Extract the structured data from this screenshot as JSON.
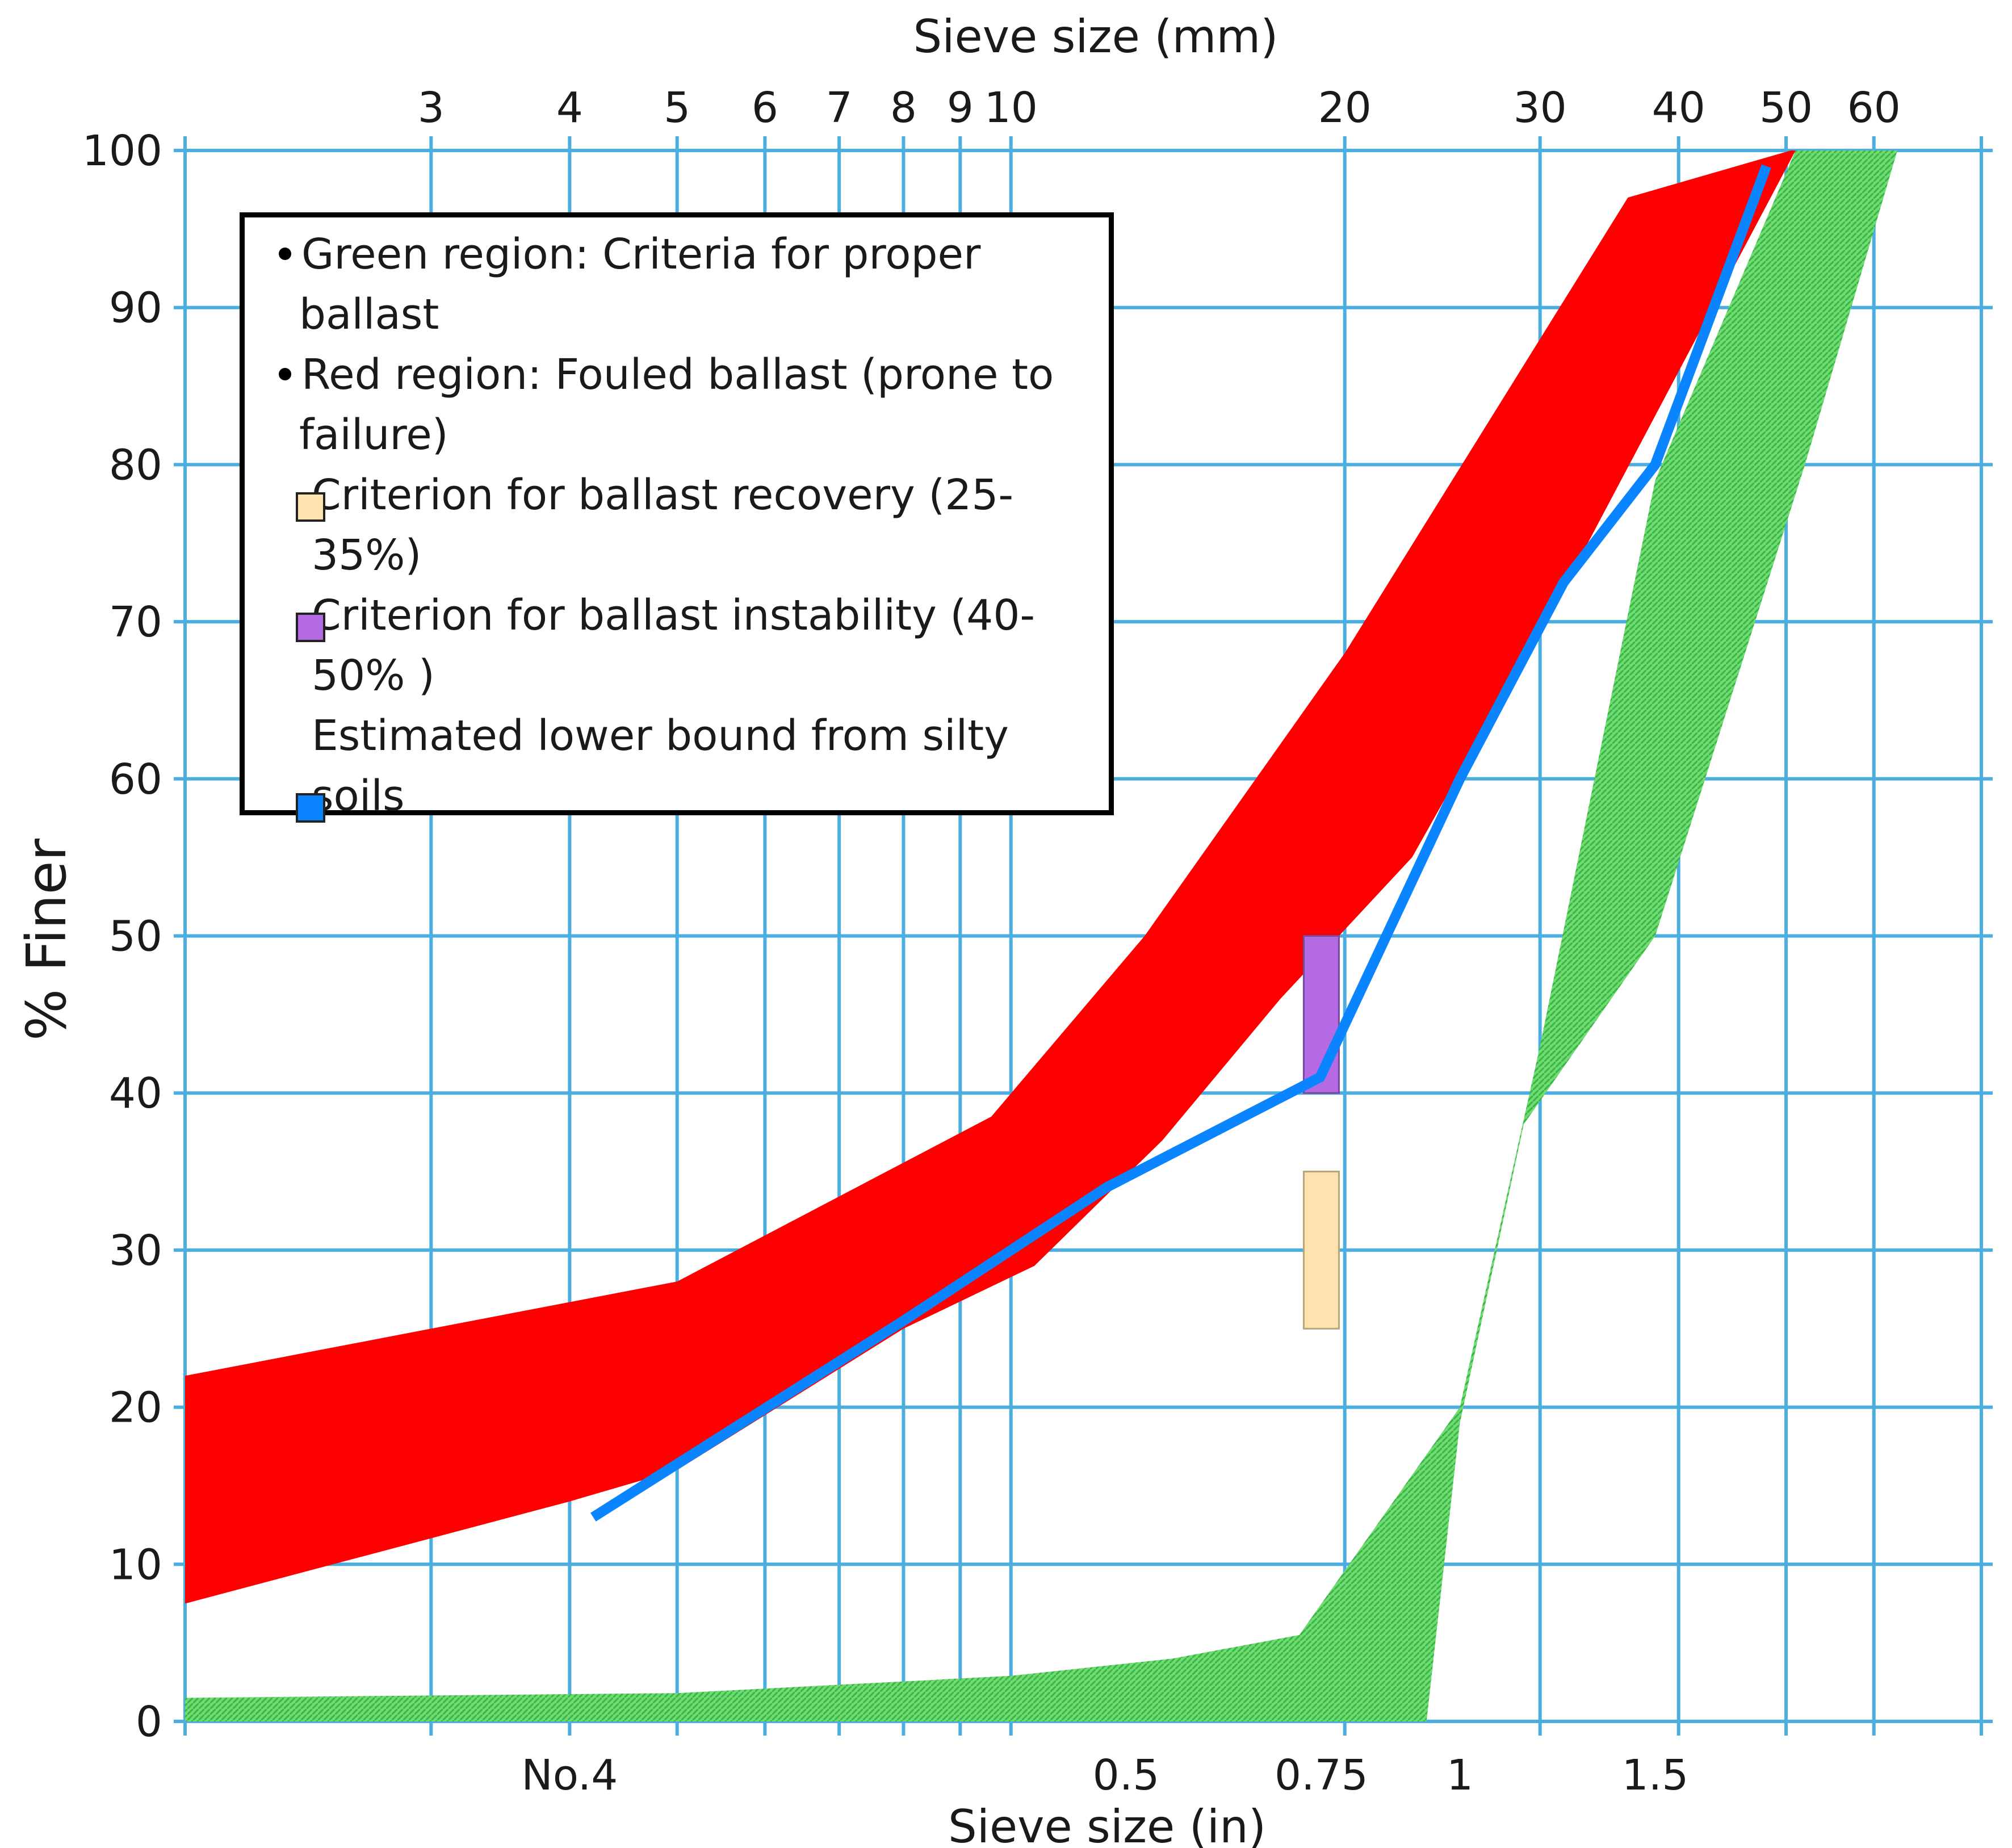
{
  "chart_data": {
    "type": "area",
    "title": "",
    "xlabel_top": "Sieve size (mm)",
    "xlabel_bottom": "Sieve size (in)",
    "ylabel": "% Finer",
    "x_scale": "log",
    "xlim_mm": [
      1.8,
      75
    ],
    "ylim": [
      0,
      100
    ],
    "grid": true,
    "top_ticks": [
      {
        "mm": 3,
        "label": "3"
      },
      {
        "mm": 4,
        "label": "4"
      },
      {
        "mm": 5,
        "label": "5"
      },
      {
        "mm": 6,
        "label": "6"
      },
      {
        "mm": 7,
        "label": "7"
      },
      {
        "mm": 8,
        "label": "8"
      },
      {
        "mm": 9,
        "label": "9"
      },
      {
        "mm": 10,
        "label": "10"
      },
      {
        "mm": 20,
        "label": "20"
      },
      {
        "mm": 30,
        "label": "30"
      },
      {
        "mm": 40,
        "label": "40"
      },
      {
        "mm": 50,
        "label": "50"
      },
      {
        "mm": 60,
        "label": "60"
      }
    ],
    "bottom_ticks": [
      {
        "mm": 4,
        "label": "No.4"
      },
      {
        "mm": 12.7,
        "label": "0.5"
      },
      {
        "mm": 19.05,
        "label": "0.75"
      },
      {
        "mm": 25.4,
        "label": "1"
      },
      {
        "mm": 38.1,
        "label": "1.5"
      }
    ],
    "y_ticks": [
      0,
      10,
      20,
      30,
      40,
      50,
      60,
      70,
      80,
      90,
      100
    ],
    "series": [
      {
        "name": "Green region: Criteria for proper ballast",
        "kind": "band",
        "color": "#5cd65c",
        "upper": [
          [
            1.8,
            1.5
          ],
          [
            5,
            1.8
          ],
          [
            10,
            2.9
          ],
          [
            14,
            4
          ],
          [
            18.2,
            5.5
          ],
          [
            25.4,
            20
          ],
          [
            30,
            43
          ],
          [
            38.1,
            79
          ],
          [
            51,
            100
          ],
          [
            65,
            100
          ]
        ],
        "lower": [
          [
            1.8,
            0
          ],
          [
            23.7,
            0
          ],
          [
            25.4,
            19
          ],
          [
            29,
            38
          ],
          [
            38.1,
            50
          ],
          [
            52,
            80
          ],
          [
            63,
            100
          ]
        ]
      },
      {
        "name": "Red region: Fouled ballast (prone to failure)",
        "kind": "band",
        "color": "#ff0000",
        "upper": [
          [
            1.8,
            22
          ],
          [
            5,
            28
          ],
          [
            9.6,
            38.5
          ],
          [
            13.2,
            50
          ],
          [
            20,
            68
          ],
          [
            36,
            97
          ],
          [
            50.5,
            100
          ]
        ],
        "lower": [
          [
            1.8,
            7.5
          ],
          [
            4,
            14
          ],
          [
            5,
            16
          ],
          [
            8,
            25
          ],
          [
            10.5,
            29
          ],
          [
            13.7,
            37
          ],
          [
            17.5,
            46
          ],
          [
            23,
            55
          ],
          [
            32,
            73
          ],
          [
            51,
            100
          ]
        ]
      },
      {
        "name": "Estimated lower bound from silty soils",
        "kind": "line",
        "color": "#0a84ff",
        "points": [
          [
            4.2,
            13
          ],
          [
            8,
            25.5
          ],
          [
            12.2,
            34
          ],
          [
            19,
            41
          ],
          [
            25.4,
            60
          ],
          [
            31.5,
            72.5
          ],
          [
            38.1,
            80
          ],
          [
            48,
            99
          ]
        ]
      }
    ],
    "bars": [
      {
        "name": "Criterion for ballast recovery (25-35%)",
        "mm": 19.05,
        "y_range": [
          25,
          35
        ],
        "color": "#fde3ad"
      },
      {
        "name": "Criterion for ballast instability (40-50% )",
        "mm": 19.05,
        "y_range": [
          40,
          50
        ],
        "color": "#b36ae2"
      }
    ]
  },
  "legend": {
    "items": [
      {
        "type": "bullet",
        "text": "Green region: Criteria for proper ballast"
      },
      {
        "type": "bullet",
        "text": "Red region: Fouled ballast (prone to failure)"
      },
      {
        "type": "swatch",
        "color": "#fde3ad",
        "text": "Criterion for ballast recovery (25-35%)"
      },
      {
        "type": "swatch",
        "color": "#b36ae2",
        "text": "Criterion for ballast instability (40-50% )"
      },
      {
        "type": "plain",
        "text": "Estimated lower bound from silty soils"
      },
      {
        "type": "swatch",
        "color": "#0a84ff",
        "text": "soils",
        "note": "blue swatch shares the silty-soils entry"
      }
    ]
  },
  "colors": {
    "grid": "#4aaee0",
    "green_fill": "#5cd65c",
    "red_fill": "#ff0000",
    "blue_line": "#0a84ff",
    "axis": "#1a1a1a"
  }
}
